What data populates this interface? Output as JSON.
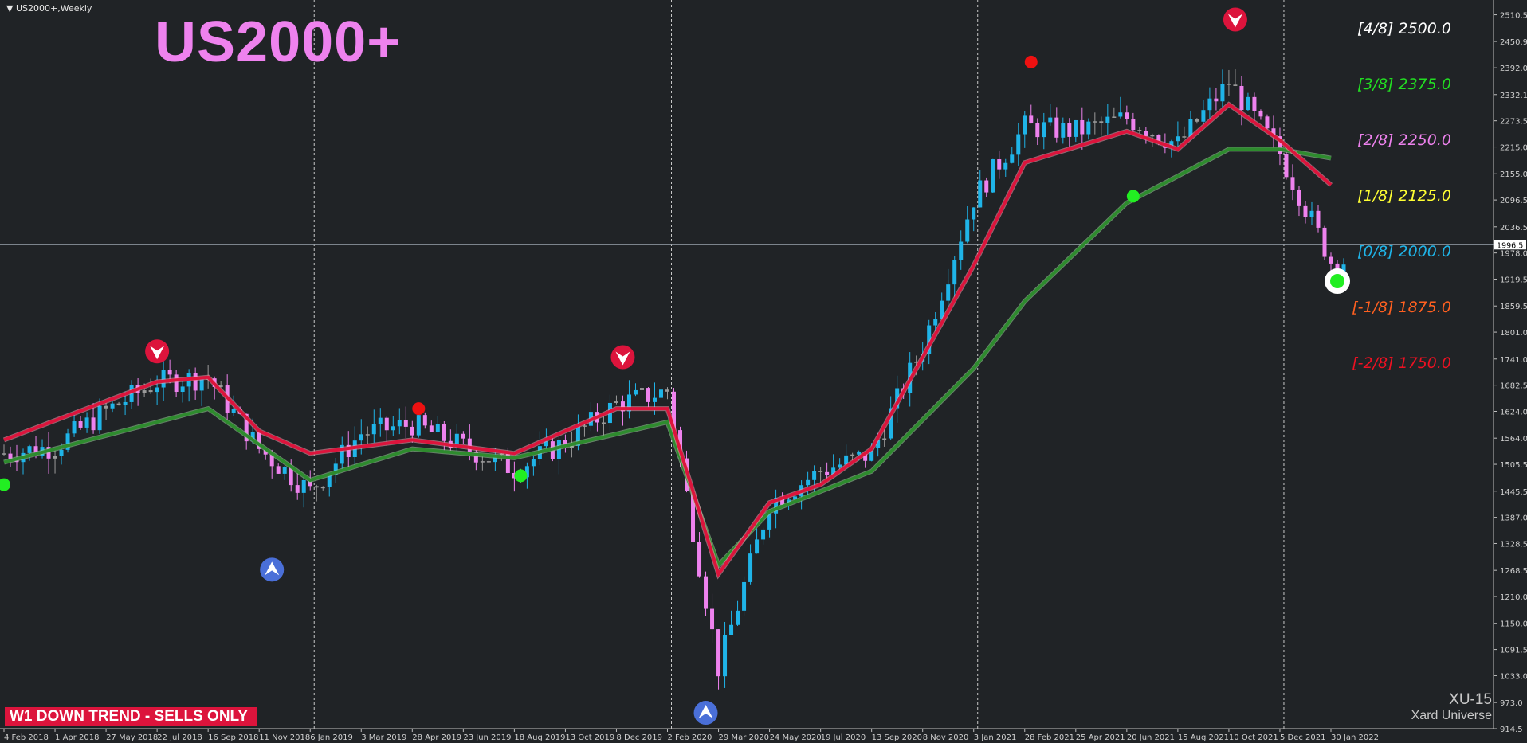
{
  "window": {
    "symbol_label": "US2000+,Weekly",
    "title": "US2000+",
    "trend_badge": "W1  DOWN TREND - SELLS ONLY",
    "brand_code": "XU-15",
    "brand_name": "Xard Universe"
  },
  "colors": {
    "background": "#202326",
    "bull_candle": "#1fb4e8",
    "bear_candle": "#ee82ee",
    "neutral_candle": "#9a9a9a",
    "fast_ma": "#dc143c",
    "slow_ma": "#2e8b2e",
    "axis_text": "#d0d0d0",
    "title": "#ee82ee"
  },
  "chart_data": {
    "type": "candlestick",
    "title": "US2000+",
    "ylim": [
      914.5,
      2540.0
    ],
    "current_price": 1996.5,
    "y_ticks": [
      "2510.5",
      "2450.9",
      "2392.0",
      "2332.1",
      "2273.5",
      "2215.0",
      "2155.0",
      "2096.5",
      "2036.5",
      "1978.0",
      "1919.5",
      "1859.5",
      "1801.0",
      "1741.0",
      "1682.5",
      "1624.0",
      "1564.0",
      "1505.5",
      "1445.5",
      "1387.0",
      "1328.5",
      "1268.5",
      "1210.0",
      "1150.0",
      "1091.5",
      "1033.0",
      "973.0",
      "914.5"
    ],
    "x_ticks": [
      "4 Feb 2018",
      "1 Apr 2018",
      "27 May 2018",
      "22 Jul 2018",
      "16 Sep 2018",
      "11 Nov 2018",
      "6 Jan 2019",
      "3 Mar 2019",
      "28 Apr 2019",
      "23 Jun 2019",
      "18 Aug 2019",
      "13 Oct 2019",
      "8 Dec 2019",
      "2 Feb 2020",
      "29 Mar 2020",
      "24 May 2020",
      "19 Jul 2020",
      "13 Sep 2020",
      "8 Nov 2020",
      "3 Jan 2021",
      "28 Feb 2021",
      "25 Apr 2021",
      "20 Jun 2021",
      "15 Aug 2021",
      "10 Oct 2021",
      "5 Dec 2021",
      "30 Jan 2022"
    ],
    "year_separators": [
      "6 Jan 2019",
      "2 Feb 2020",
      "3 Jan 2021",
      "5 Dec 2021"
    ],
    "close_path": [
      {
        "x": "4 Feb 2018",
        "y": 1530
      },
      {
        "x": "1 Apr 2018",
        "y": 1545
      },
      {
        "x": "27 May 2018",
        "y": 1625
      },
      {
        "x": "22 Jul 2018",
        "y": 1690
      },
      {
        "x": "16 Sep 2018",
        "y": 1700
      },
      {
        "x": "11 Nov 2018",
        "y": 1540
      },
      {
        "x": "6 Jan 2019",
        "y": 1445
      },
      {
        "x": "3 Mar 2019",
        "y": 1575
      },
      {
        "x": "28 Apr 2019",
        "y": 1595
      },
      {
        "x": "23 Jun 2019",
        "y": 1545
      },
      {
        "x": "18 Aug 2019",
        "y": 1495
      },
      {
        "x": "13 Oct 2019",
        "y": 1555
      },
      {
        "x": "8 Dec 2019",
        "y": 1640
      },
      {
        "x": "2 Feb 2020",
        "y": 1670
      },
      {
        "x": "29 Mar 2020",
        "y": 1050
      },
      {
        "x": "24 May 2020",
        "y": 1420
      },
      {
        "x": "19 Jul 2020",
        "y": 1490
      },
      {
        "x": "13 Sep 2020",
        "y": 1530
      },
      {
        "x": "8 Nov 2020",
        "y": 1770
      },
      {
        "x": "3 Jan 2021",
        "y": 2100
      },
      {
        "x": "28 Feb 2021",
        "y": 2260
      },
      {
        "x": "25 Apr 2021",
        "y": 2250
      },
      {
        "x": "20 Jun 2021",
        "y": 2280
      },
      {
        "x": "15 Aug 2021",
        "y": 2220
      },
      {
        "x": "10 Oct 2021",
        "y": 2360
      },
      {
        "x": "5 Dec 2021",
        "y": 2200
      },
      {
        "x": "30 Jan 2022",
        "y": 1960
      }
    ],
    "fast_ma": [
      {
        "x": "4 Feb 2018",
        "y": 1560
      },
      {
        "x": "22 Jul 2018",
        "y": 1690
      },
      {
        "x": "16 Sep 2018",
        "y": 1700
      },
      {
        "x": "11 Nov 2018",
        "y": 1580
      },
      {
        "x": "6 Jan 2019",
        "y": 1530
      },
      {
        "x": "28 Apr 2019",
        "y": 1560
      },
      {
        "x": "18 Aug 2019",
        "y": 1530
      },
      {
        "x": "8 Dec 2019",
        "y": 1630
      },
      {
        "x": "2 Feb 2020",
        "y": 1630
      },
      {
        "x": "29 Mar 2020",
        "y": 1260
      },
      {
        "x": "24 May 2020",
        "y": 1420
      },
      {
        "x": "19 Jul 2020",
        "y": 1460
      },
      {
        "x": "13 Sep 2020",
        "y": 1540
      },
      {
        "x": "3 Jan 2021",
        "y": 1950
      },
      {
        "x": "28 Feb 2021",
        "y": 2180
      },
      {
        "x": "20 Jun 2021",
        "y": 2250
      },
      {
        "x": "15 Aug 2021",
        "y": 2210
      },
      {
        "x": "10 Oct 2021",
        "y": 2310
      },
      {
        "x": "5 Dec 2021",
        "y": 2230
      },
      {
        "x": "30 Jan 2022",
        "y": 2130
      }
    ],
    "slow_ma": [
      {
        "x": "4 Feb 2018",
        "y": 1510
      },
      {
        "x": "16 Sep 2018",
        "y": 1630
      },
      {
        "x": "6 Jan 2019",
        "y": 1470
      },
      {
        "x": "28 Apr 2019",
        "y": 1540
      },
      {
        "x": "18 Aug 2019",
        "y": 1520
      },
      {
        "x": "2 Feb 2020",
        "y": 1600
      },
      {
        "x": "29 Mar 2020",
        "y": 1280
      },
      {
        "x": "24 May 2020",
        "y": 1400
      },
      {
        "x": "13 Sep 2020",
        "y": 1490
      },
      {
        "x": "3 Jan 2021",
        "y": 1720
      },
      {
        "x": "28 Feb 2021",
        "y": 1870
      },
      {
        "x": "20 Jun 2021",
        "y": 2090
      },
      {
        "x": "15 Aug 2021",
        "y": 2150
      },
      {
        "x": "10 Oct 2021",
        "y": 2210
      },
      {
        "x": "5 Dec 2021",
        "y": 2210
      },
      {
        "x": "30 Jan 2022",
        "y": 2190
      }
    ],
    "murrey_levels": [
      {
        "label": "[4/8]",
        "value": "2500.0",
        "color": "#ffffff"
      },
      {
        "label": "[3/8]",
        "value": "2375.0",
        "color": "#22dd22"
      },
      {
        "label": "[2/8]",
        "value": "2250.0",
        "color": "#ee82ee"
      },
      {
        "label": "[1/8]",
        "value": "2125.0",
        "color": "#ffff33"
      },
      {
        "label": "[0/8]",
        "value": "2000.0",
        "color": "#1fb4e8"
      },
      {
        "label": "[-1/8]",
        "value": "1875.0",
        "color": "#ff6020"
      },
      {
        "label": "[-2/8]",
        "value": "1750.0",
        "color": "#ee1122"
      }
    ],
    "signals": [
      {
        "type": "sell-arrow",
        "x": "22 Jul 2018",
        "y": 1758
      },
      {
        "type": "sell-arrow",
        "x": "15 Dec 2019",
        "y": 1745
      },
      {
        "type": "sell-arrow",
        "x": "17 Oct 2021",
        "y": 2500
      },
      {
        "type": "buy-arrow",
        "x": "25 Nov 2018",
        "y": 1270
      },
      {
        "type": "buy-arrow",
        "x": "15 Mar 2020",
        "y": 950
      },
      {
        "type": "red-dot",
        "x": "5 May 2019",
        "y": 1630
      },
      {
        "type": "red-dot",
        "x": "7 Mar 2021",
        "y": 2405
      },
      {
        "type": "green-dot",
        "x": "4 Feb 2018",
        "y": 1460
      },
      {
        "type": "green-dot",
        "x": "25 Aug 2019",
        "y": 1480
      },
      {
        "type": "green-dot",
        "x": "27 Jun 2021",
        "y": 2105
      },
      {
        "type": "green-ring",
        "x": "6 Feb 2022",
        "y": 1915
      }
    ]
  }
}
